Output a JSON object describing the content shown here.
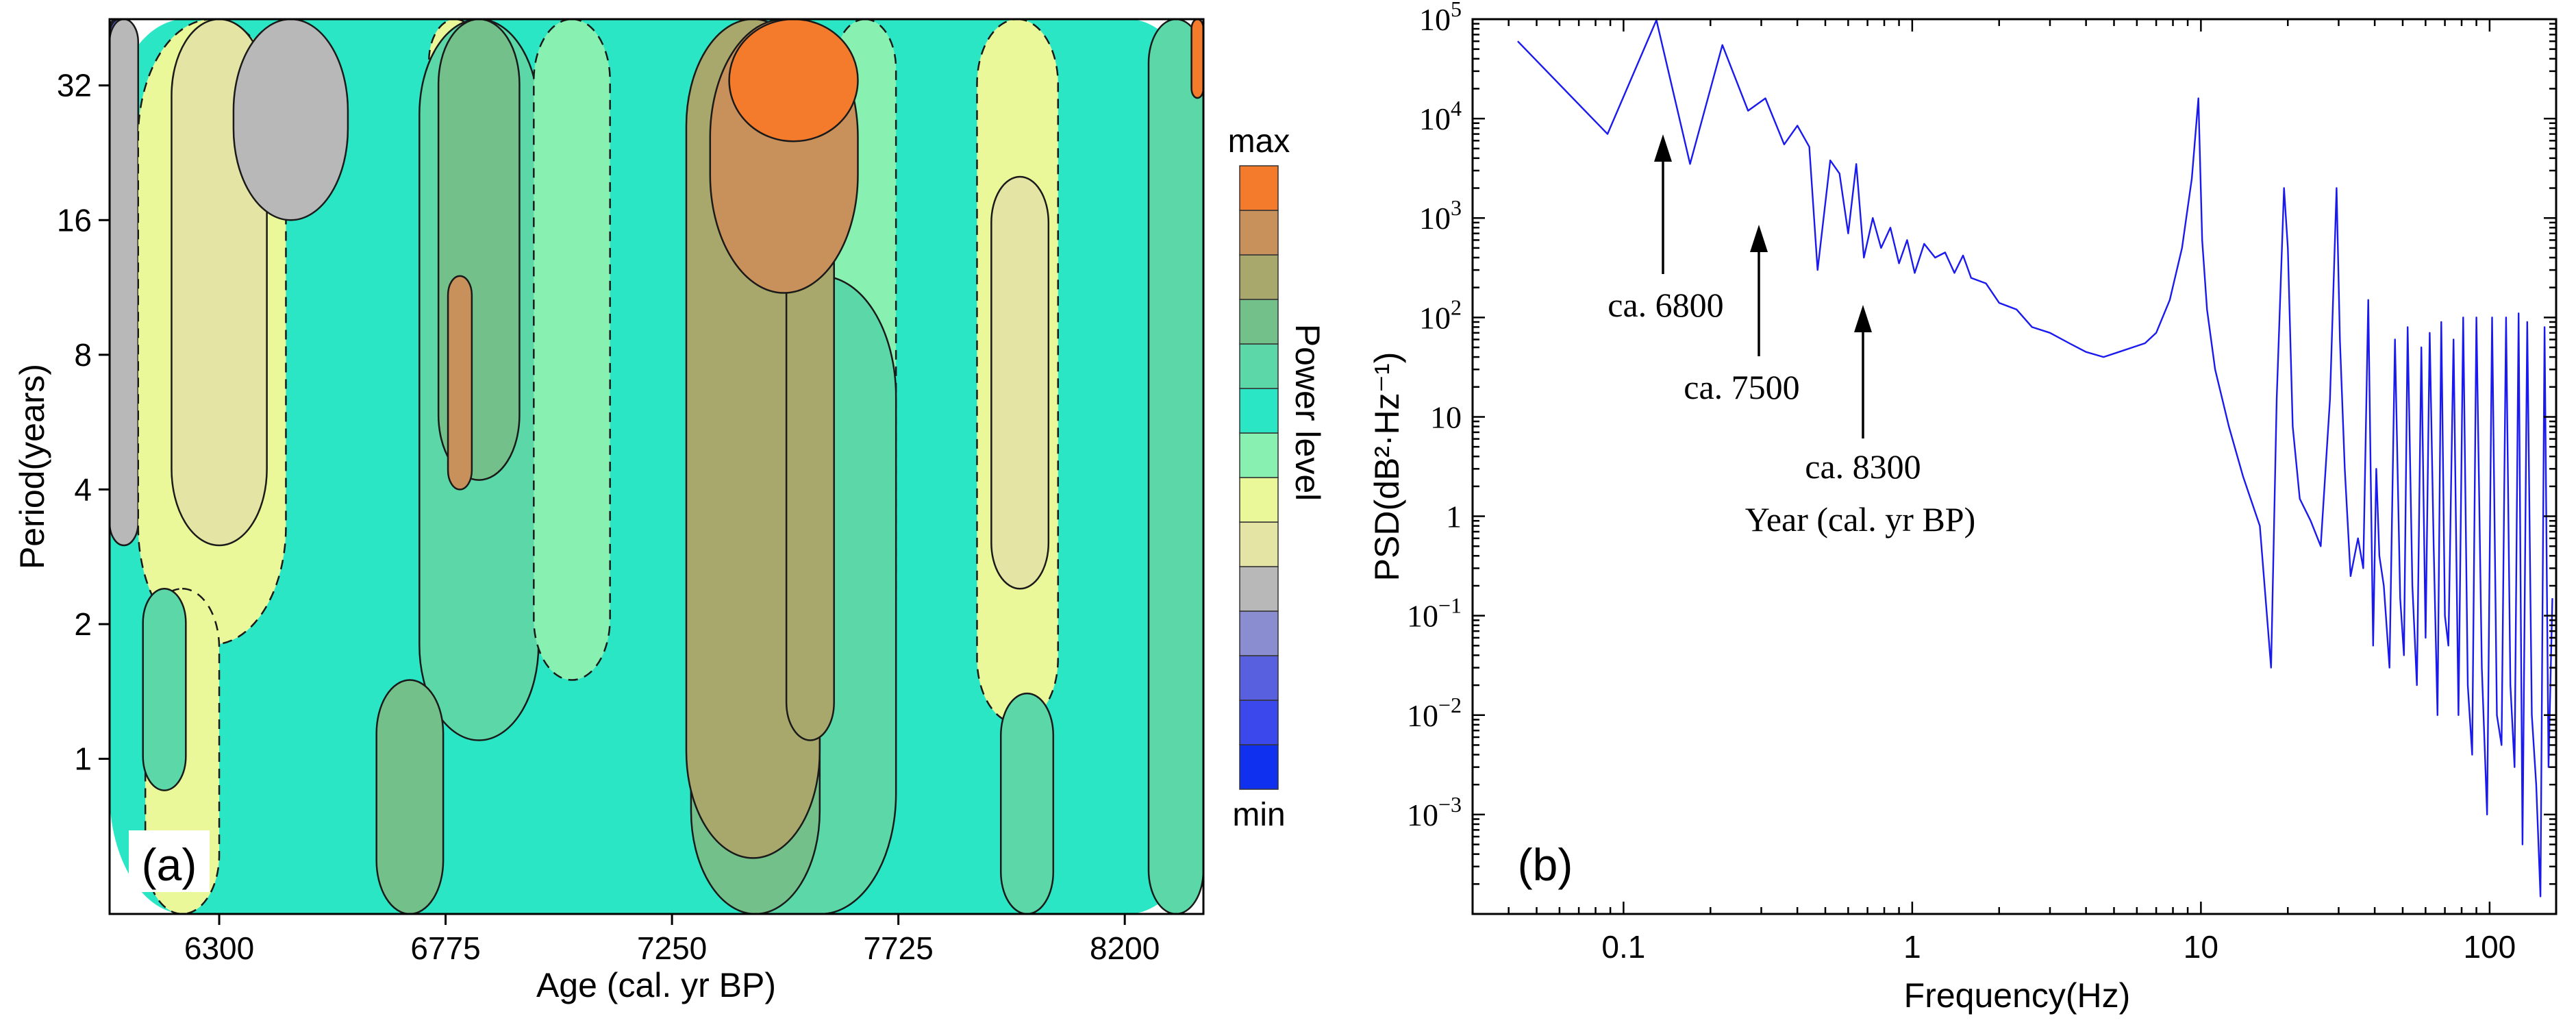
{
  "chart_data": [
    {
      "type": "heatmap",
      "panel_label": "(a)",
      "xlabel": "Age (cal. yr BP)",
      "ylabel": "Period(years)",
      "xticks": [
        6300,
        6775,
        7250,
        7725,
        8200
      ],
      "xlim": [
        6070,
        8365
      ],
      "yticks": [
        1,
        2,
        4,
        8,
        16,
        32
      ],
      "ylim": [
        0.45,
        45
      ],
      "y_scale": "log2",
      "colorbar": {
        "label": "Power level",
        "max_label": "max",
        "min_label": "min",
        "colors": [
          "#1030f0",
          "#3a48ec",
          "#5860e0",
          "#8a8ed0",
          "#b8b8b8",
          "#e4e4a4",
          "#eaf89a",
          "#88f0b0",
          "#2be6c4",
          "#5cd8a8",
          "#74c08a",
          "#a8a86c",
          "#c8905a",
          "#f47a2c"
        ]
      },
      "contour_levels": {
        "dashed_between": [
          "#88f0b0",
          "#eaf89a"
        ],
        "solid_between_others": true
      },
      "regions": [
        {
          "level": 8,
          "age": [
            6070,
            8365
          ],
          "period": [
            0.45,
            45
          ]
        },
        {
          "level": 0,
          "age": [
            6070,
            6095
          ],
          "period": [
            22,
            45
          ]
        },
        {
          "level": 2,
          "age": [
            6070,
            6110
          ],
          "period": [
            14,
            45
          ]
        },
        {
          "level": 4,
          "age": [
            6070,
            6130
          ],
          "period": [
            3,
            45
          ]
        },
        {
          "level": 6,
          "age": [
            6130,
            6440
          ],
          "period": [
            1.8,
            45
          ]
        },
        {
          "level": 5,
          "age": [
            6200,
            6400
          ],
          "period": [
            3,
            45
          ]
        },
        {
          "level": 4,
          "age": [
            6330,
            6570
          ],
          "period": [
            16,
            45
          ]
        },
        {
          "level": 6,
          "age": [
            6740,
            6850
          ],
          "period": [
            28,
            45
          ]
        },
        {
          "level": 9,
          "age": [
            6720,
            6970
          ],
          "period": [
            1.1,
            45
          ]
        },
        {
          "level": 10,
          "age": [
            6760,
            6930
          ],
          "period": [
            4.2,
            45
          ]
        },
        {
          "level": 12,
          "age": [
            6780,
            6830
          ],
          "period": [
            4,
            12
          ]
        },
        {
          "level": 7,
          "age": [
            6960,
            7120
          ],
          "period": [
            1.5,
            45
          ]
        },
        {
          "level": 7,
          "age": [
            7590,
            7720
          ],
          "period": [
            1.8,
            45
          ]
        },
        {
          "level": 6,
          "age": [
            7890,
            8060
          ],
          "period": [
            1.2,
            45
          ]
        },
        {
          "level": 5,
          "age": [
            7920,
            8040
          ],
          "period": [
            2.4,
            20
          ]
        },
        {
          "level": 6,
          "age": [
            6145,
            6300
          ],
          "period": [
            0.45,
            2.4
          ]
        },
        {
          "level": 9,
          "age": [
            6140,
            6230
          ],
          "period": [
            0.85,
            2.4
          ]
        },
        {
          "level": 10,
          "age": [
            6630,
            6770
          ],
          "period": [
            0.45,
            1.5
          ]
        },
        {
          "level": 9,
          "age": [
            7290,
            7720
          ],
          "period": [
            0.45,
            12
          ]
        },
        {
          "level": 10,
          "age": [
            7290,
            7560
          ],
          "period": [
            0.45,
            8
          ]
        },
        {
          "level": 11,
          "age": [
            7280,
            7560
          ],
          "period": [
            0.6,
            45
          ]
        },
        {
          "level": 11,
          "age": [
            7490,
            7590
          ],
          "period": [
            1.1,
            20
          ]
        },
        {
          "level": 12,
          "age": [
            7330,
            7640
          ],
          "period": [
            11,
            45
          ]
        },
        {
          "level": 13,
          "age": [
            7370,
            7640
          ],
          "period": [
            24,
            45
          ]
        },
        {
          "level": 9,
          "age": [
            7940,
            8050
          ],
          "period": [
            0.45,
            1.4
          ]
        },
        {
          "level": 9,
          "age": [
            8250,
            8365
          ],
          "period": [
            0.45,
            45
          ]
        },
        {
          "level": 13,
          "age": [
            8340,
            8365
          ],
          "period": [
            30,
            45
          ]
        }
      ]
    },
    {
      "type": "line",
      "panel_label": "(b)",
      "xlabel": "Frequency(Hz)",
      "ylabel": "PSD(dB²·Hz⁻¹)",
      "x_scale": "log",
      "y_scale": "log",
      "xlim": [
        0.03,
        170
      ],
      "ylim": [
        0.0001,
        100000
      ],
      "xticks": [
        0.1,
        1,
        10,
        100
      ],
      "xtick_labels": [
        "0.1",
        "1",
        "10",
        "100"
      ],
      "yticks": [
        0.001,
        0.01,
        0.1,
        1,
        10,
        100,
        1000,
        10000,
        100000
      ],
      "ytick_labels": [
        {
          "base": "10",
          "exp": "−3"
        },
        {
          "base": "10",
          "exp": "−2"
        },
        {
          "base": "10",
          "exp": "−1"
        },
        {
          "base": "1",
          "exp": ""
        },
        {
          "base": "10",
          "exp": ""
        },
        {
          "base": "10",
          "exp": "2"
        },
        {
          "base": "10",
          "exp": "3"
        },
        {
          "base": "10",
          "exp": "4"
        },
        {
          "base": "10",
          "exp": "5"
        }
      ],
      "line_color": "#1a1aee",
      "series": [
        {
          "x": [
            0.043,
            0.088,
            0.13,
            0.17,
            0.22,
            0.27,
            0.31,
            0.36,
            0.4,
            0.44,
            0.47,
            0.52,
            0.56,
            0.6,
            0.64,
            0.68,
            0.73,
            0.78,
            0.84,
            0.9,
            0.96,
            1.02,
            1.1,
            1.2,
            1.3,
            1.4,
            1.5,
            1.6,
            1.8,
            2.0,
            2.3,
            2.6,
            3.0,
            3.5,
            4.0,
            4.6,
            5.2,
            5.8,
            6.4,
            7.0,
            7.8,
            8.6,
            9.3,
            9.8,
            10.1,
            10.5,
            11.2,
            12.5,
            14,
            16,
            17.5,
            18.3,
            19.4,
            20,
            20.8,
            22,
            24,
            26,
            28,
            29.5,
            30.3,
            31.5,
            33,
            35,
            36.5,
            38,
            39.5,
            40.5,
            41.5,
            43,
            45,
            47,
            49,
            50.5,
            52,
            54,
            56,
            58,
            60,
            62,
            64,
            66,
            68,
            70,
            72,
            75,
            78,
            81,
            84,
            87,
            90,
            94,
            98,
            102,
            106,
            110,
            114,
            118,
            122,
            126,
            130,
            135,
            140,
            145,
            150,
            155,
            160,
            165
          ],
          "y": [
            60000,
            7000,
            98000,
            3500,
            55000,
            12000,
            16000,
            5500,
            8500,
            5200,
            300,
            3800,
            2800,
            700,
            3500,
            400,
            1000,
            500,
            800,
            350,
            600,
            280,
            550,
            400,
            450,
            280,
            420,
            250,
            220,
            140,
            120,
            80,
            70,
            55,
            45,
            40,
            45,
            50,
            55,
            70,
            150,
            500,
            2500,
            16000,
            600,
            120,
            30,
            8,
            2.5,
            0.8,
            0.03,
            15,
            2000,
            500,
            8,
            1.5,
            0.9,
            0.5,
            15,
            2000,
            60,
            3,
            0.25,
            0.6,
            0.3,
            150,
            0.05,
            3,
            0.4,
            0.2,
            0.03,
            60,
            0.15,
            0.04,
            80,
            0.2,
            0.02,
            50,
            0.06,
            70,
            0.5,
            0.01,
            90,
            0.1,
            0.05,
            60,
            0.01,
            100,
            0.02,
            0.004,
            100,
            0.03,
            0.001,
            100,
            0.01,
            0.005,
            100,
            0.02,
            0.003,
            110,
            0.0005,
            90,
            0.01,
            0.002,
            0.00015,
            80,
            0.003,
            0.15
          ]
        }
      ],
      "annotations": [
        {
          "text": "ca. 6800",
          "x": 0.125,
          "y": 98000
        },
        {
          "text": "ca. 7500",
          "x": 0.28,
          "y": 12000
        },
        {
          "text": "ca. 8300",
          "x": 0.62,
          "y": 700
        },
        {
          "text": "Year (cal. yr BP)"
        }
      ]
    }
  ]
}
